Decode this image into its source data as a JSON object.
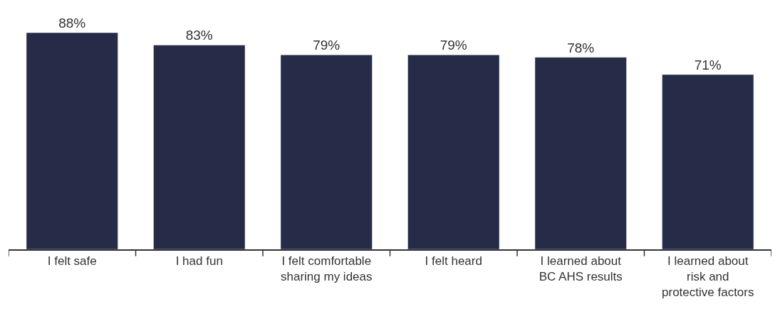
{
  "chart_data": {
    "type": "bar",
    "categories": [
      "I felt safe",
      "I had fun",
      "I felt comfortable\nsharing my ideas",
      "I felt heard",
      "I learned about\nBC AHS results",
      "I learned about\nrisk and\nprotective factors"
    ],
    "values": [
      88,
      83,
      79,
      79,
      78,
      71
    ],
    "color": "#262b47",
    "value_labels": [
      "88%",
      "83%",
      "79%",
      "79%",
      "78%",
      "71%"
    ],
    "tick_labels": "x"
  }
}
